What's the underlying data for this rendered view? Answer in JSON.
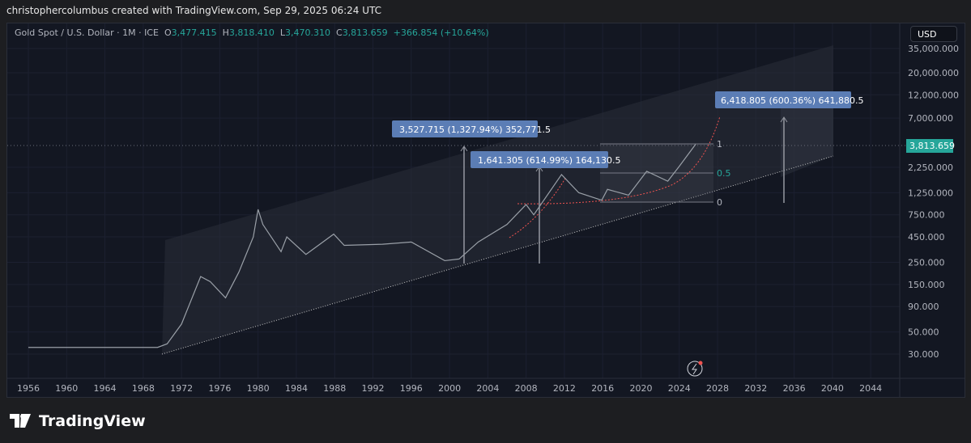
{
  "header": {
    "attribution": "christophercolumbus created with TradingView.com, Sep 29, 2025 06:24 UTC"
  },
  "legend": {
    "symbol": "Gold Spot / U.S. Dollar · 1M · ICE",
    "o_label": "O",
    "o": "3,477.415",
    "h_label": "H",
    "h": "3,818.410",
    "l_label": "L",
    "l": "3,470.310",
    "c_label": "C",
    "c": "3,813.659",
    "change": "+366.854 (+10.64%)"
  },
  "currency_button": "USD",
  "last_price_label": "3,813.659",
  "price_axis": [
    "35,000.000",
    "20,000.000",
    "12,000.000",
    "7,000.000",
    "2,250.000",
    "1,250.000",
    "750.000",
    "450.000",
    "250.000",
    "150.000",
    "90.000",
    "50.000",
    "30.000"
  ],
  "time_axis": [
    "1956",
    "1960",
    "1964",
    "1968",
    "1972",
    "1976",
    "1980",
    "1984",
    "1988",
    "1992",
    "1996",
    "2000",
    "2004",
    "2008",
    "2012",
    "2016",
    "2020",
    "2024",
    "2028",
    "2032",
    "2036",
    "2040",
    "2044"
  ],
  "annotations": {
    "measure1": "3,527.715 (1,327.94%) 352,771.5",
    "measure2": "1,641.305 (614.99%) 164,130.5",
    "measure3": "6,418.805 (600.36%) 641,880.5",
    "fib_1": "1",
    "fib_05": "0.5",
    "fib_0": "0"
  },
  "colors": {
    "up": "#26a69a",
    "down": "#ef5350",
    "label_bg": "#5b7db5",
    "bg": "#131722"
  },
  "brand": "TradingView",
  "chart_data": {
    "type": "line",
    "title": "Gold Spot / U.S. Dollar · 1M · ICE",
    "scale": "log",
    "ylim": [
      30,
      35000
    ],
    "xlim": [
      1954,
      2046
    ],
    "x": [
      1956,
      1969.5,
      1970.5,
      1972,
      1974,
      1975,
      1976.6,
      1978,
      1979.5,
      1980,
      1980.5,
      1982.4,
      1983,
      1985,
      1987.9,
      1989,
      1993,
      1996,
      1999.5,
      2001,
      2003,
      2006,
      2008,
      2008.8,
      2011.7,
      2013.5,
      2015.9,
      2016.5,
      2018.7,
      2020.6,
      2022.8,
      2024,
      2025.7
    ],
    "y": [
      35,
      35,
      38,
      60,
      180,
      160,
      110,
      200,
      450,
      850,
      600,
      320,
      450,
      300,
      480,
      370,
      380,
      400,
      260,
      270,
      400,
      600,
      950,
      750,
      1900,
      1250,
      1050,
      1350,
      1180,
      2050,
      1630,
      2300,
      3813
    ]
  }
}
